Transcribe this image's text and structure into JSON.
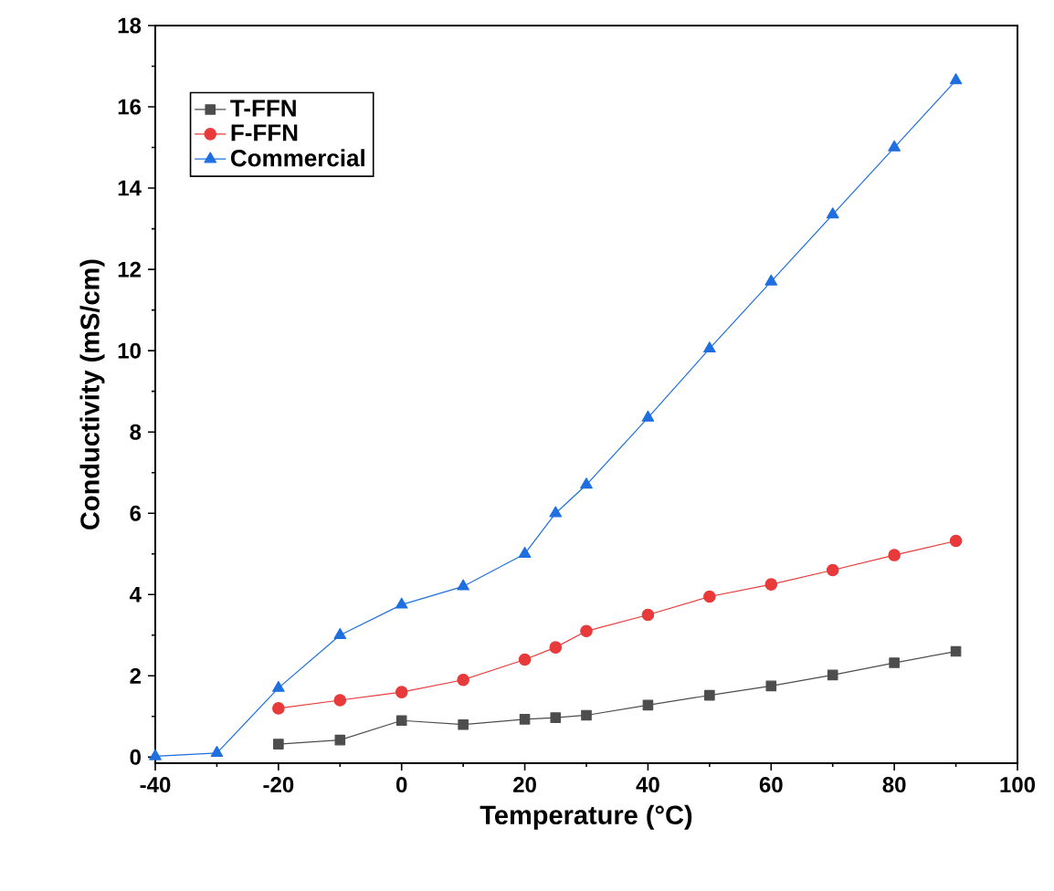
{
  "chart_data": {
    "type": "line",
    "xlabel": "Temperature (°C)",
    "ylabel": "Conductivity (mS/cm)",
    "xlim": [
      -40,
      100
    ],
    "ylim": [
      -0.15,
      18
    ],
    "xticks": [
      -40,
      -20,
      0,
      20,
      40,
      60,
      80,
      100
    ],
    "yticks": [
      0,
      2,
      4,
      6,
      8,
      10,
      12,
      14,
      16,
      18
    ],
    "legend": "top left",
    "grid": false,
    "series": [
      {
        "name": "T-FFN",
        "color": "#4d4d4d",
        "marker": "square",
        "x": [
          -20,
          -10,
          0,
          10,
          20,
          25,
          30,
          40,
          50,
          60,
          70,
          80,
          90
        ],
        "values": [
          0.32,
          0.42,
          0.9,
          0.8,
          0.93,
          0.97,
          1.03,
          1.28,
          1.52,
          1.75,
          2.02,
          2.32,
          2.6
        ]
      },
      {
        "name": "F-FFN",
        "color": "#e83a3a",
        "marker": "circle",
        "x": [
          -20,
          -10,
          0,
          10,
          20,
          25,
          30,
          40,
          50,
          60,
          70,
          80,
          90
        ],
        "values": [
          1.2,
          1.4,
          1.6,
          1.9,
          2.4,
          2.7,
          3.1,
          3.5,
          3.95,
          4.25,
          4.6,
          4.97,
          5.32
        ]
      },
      {
        "name": "Commercial",
        "color": "#1f6fe0",
        "marker": "triangle",
        "x": [
          -40,
          -30,
          -20,
          -10,
          0,
          10,
          20,
          25,
          30,
          40,
          50,
          60,
          70,
          80,
          90
        ],
        "values": [
          0.02,
          0.1,
          1.7,
          3.0,
          3.75,
          4.2,
          5.0,
          6.0,
          6.7,
          8.35,
          10.05,
          11.7,
          13.35,
          15.0,
          16.65
        ]
      }
    ]
  }
}
